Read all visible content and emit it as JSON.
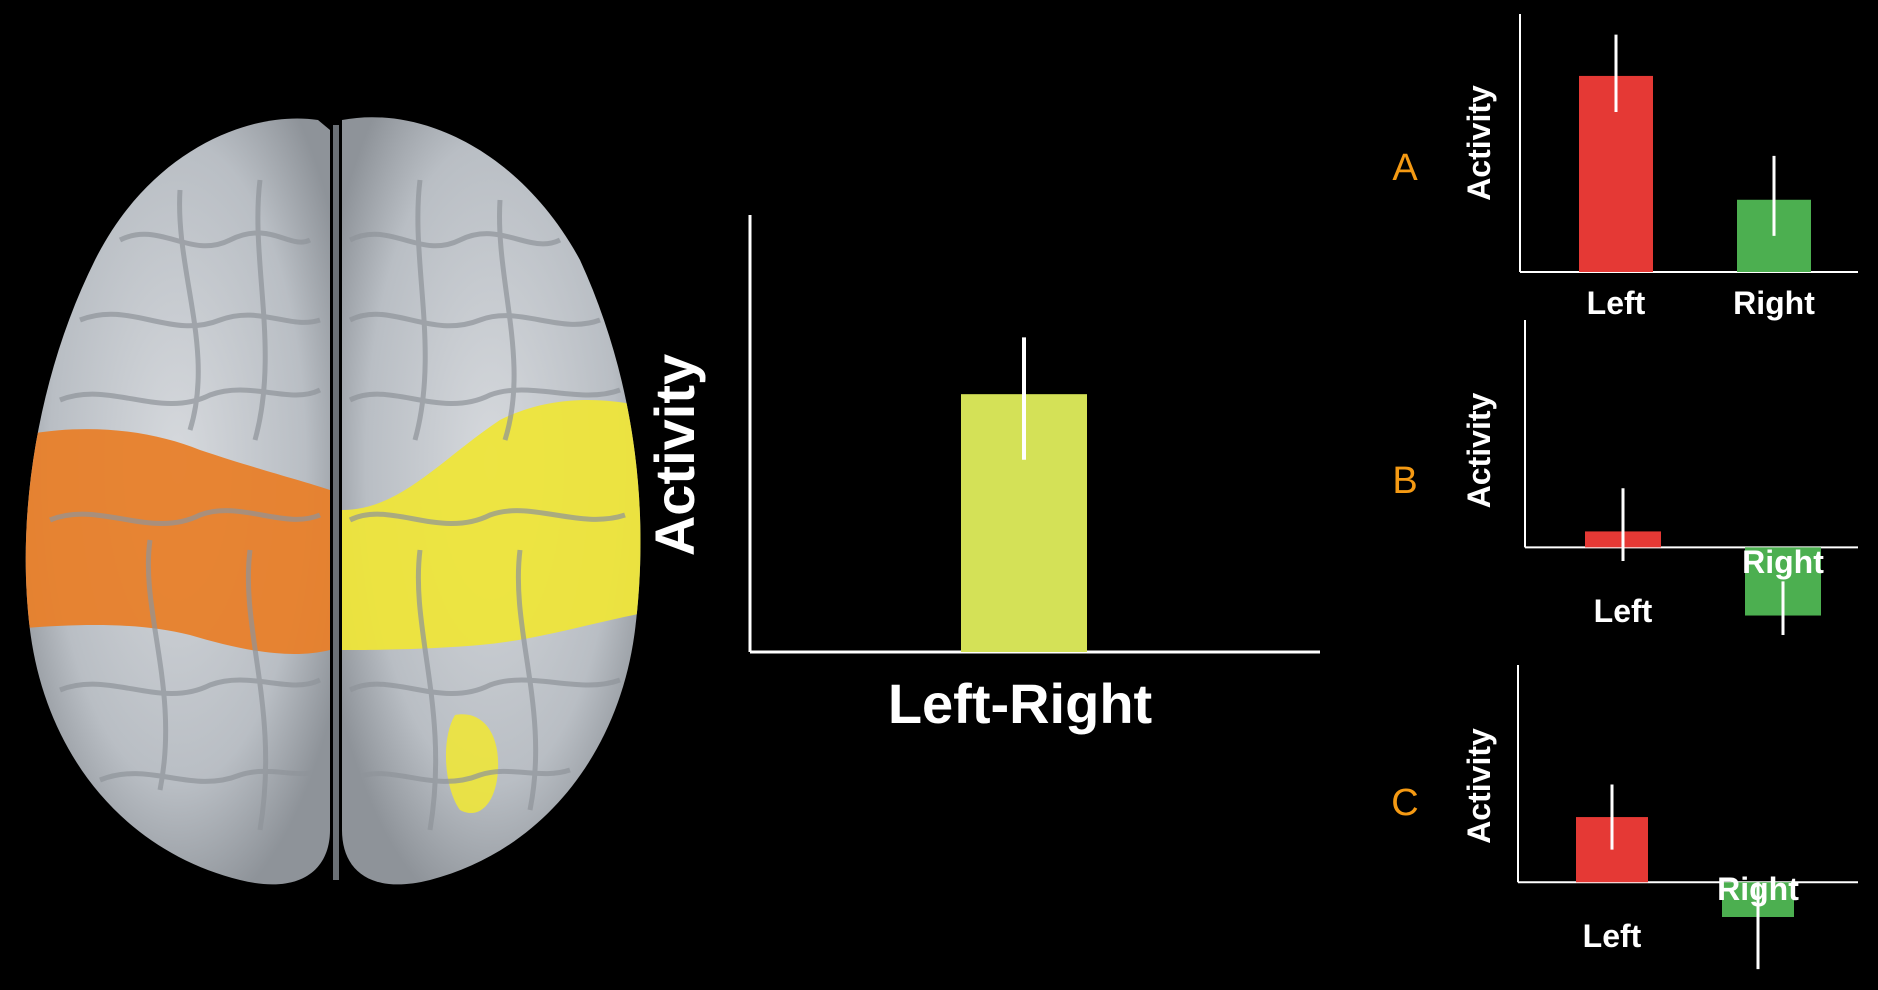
{
  "colors": {
    "background": "#000000",
    "axis": "#ffffff",
    "main_bar": "#d4e157",
    "left_bar": "#e53935",
    "right_bar": "#4caf50",
    "panel_label": "#f59a13",
    "orange_region": "#e8802a",
    "yellow_region": "#eee53a",
    "brain": "#c3c7cc"
  },
  "brain": {
    "icon": "brain-top-view-icon"
  },
  "chart_data": [
    {
      "id": "main",
      "type": "bar",
      "categories": [
        "Left-Right"
      ],
      "values": [
        0.59
      ],
      "error": [
        [
          0.44,
          0.72
        ]
      ],
      "xlabel": "Left-Right",
      "ylabel": "Activity",
      "ylim": [
        0,
        1
      ],
      "grid": false
    },
    {
      "id": "A",
      "type": "bar",
      "panel_label": "A",
      "categories": [
        "Left",
        "Right"
      ],
      "values": [
        0.76,
        0.28
      ],
      "error": [
        [
          0.62,
          0.92
        ],
        [
          0.14,
          0.45
        ]
      ],
      "ylabel": "Activity",
      "ylim": [
        0,
        1
      ],
      "grid": false
    },
    {
      "id": "B",
      "type": "bar",
      "panel_label": "B",
      "categories": [
        "Left",
        "Right"
      ],
      "values": [
        0.07,
        -0.3
      ],
      "error": [
        [
          -0.06,
          0.26
        ],
        [
          -0.46,
          -0.15
        ]
      ],
      "ylabel": "Activity",
      "ylim": [
        -0.5,
        1
      ],
      "grid": false
    },
    {
      "id": "C",
      "type": "bar",
      "panel_label": "C",
      "categories": [
        "Left",
        "Right"
      ],
      "values": [
        0.3,
        -0.16
      ],
      "error": [
        [
          0.15,
          0.45
        ],
        [
          -0.4,
          0.0
        ]
      ],
      "ylabel": "Activity",
      "ylim": [
        -0.45,
        1
      ],
      "grid": false
    }
  ]
}
